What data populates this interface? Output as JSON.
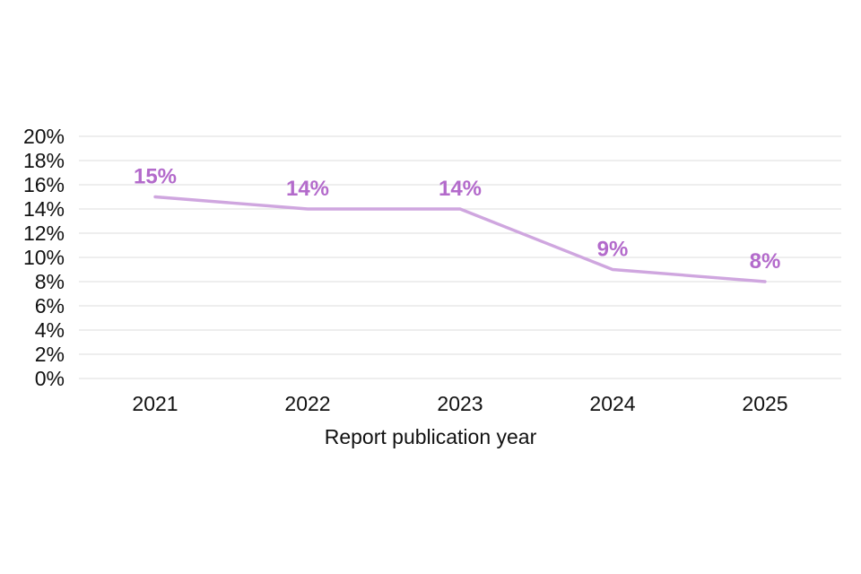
{
  "chart_data": {
    "type": "line",
    "title": "",
    "xlabel": "Report publication year",
    "ylabel": "",
    "categories": [
      "2021",
      "2022",
      "2023",
      "2024",
      "2025"
    ],
    "series": [
      {
        "name": "percentage",
        "values": [
          15,
          14,
          14,
          9,
          8
        ]
      }
    ],
    "data_labels": [
      "15%",
      "14%",
      "14%",
      "9%",
      "8%"
    ],
    "ylim": [
      0,
      20
    ],
    "ytick_step": 2,
    "ytick_suffix": "%",
    "grid": "horizontal",
    "legend_position": "none",
    "colors": {
      "line": "#cfa6df",
      "data_label": "#b36acb",
      "gridline": "#e4e4e4",
      "axis_text": "#111111",
      "background": "#ffffff"
    }
  }
}
